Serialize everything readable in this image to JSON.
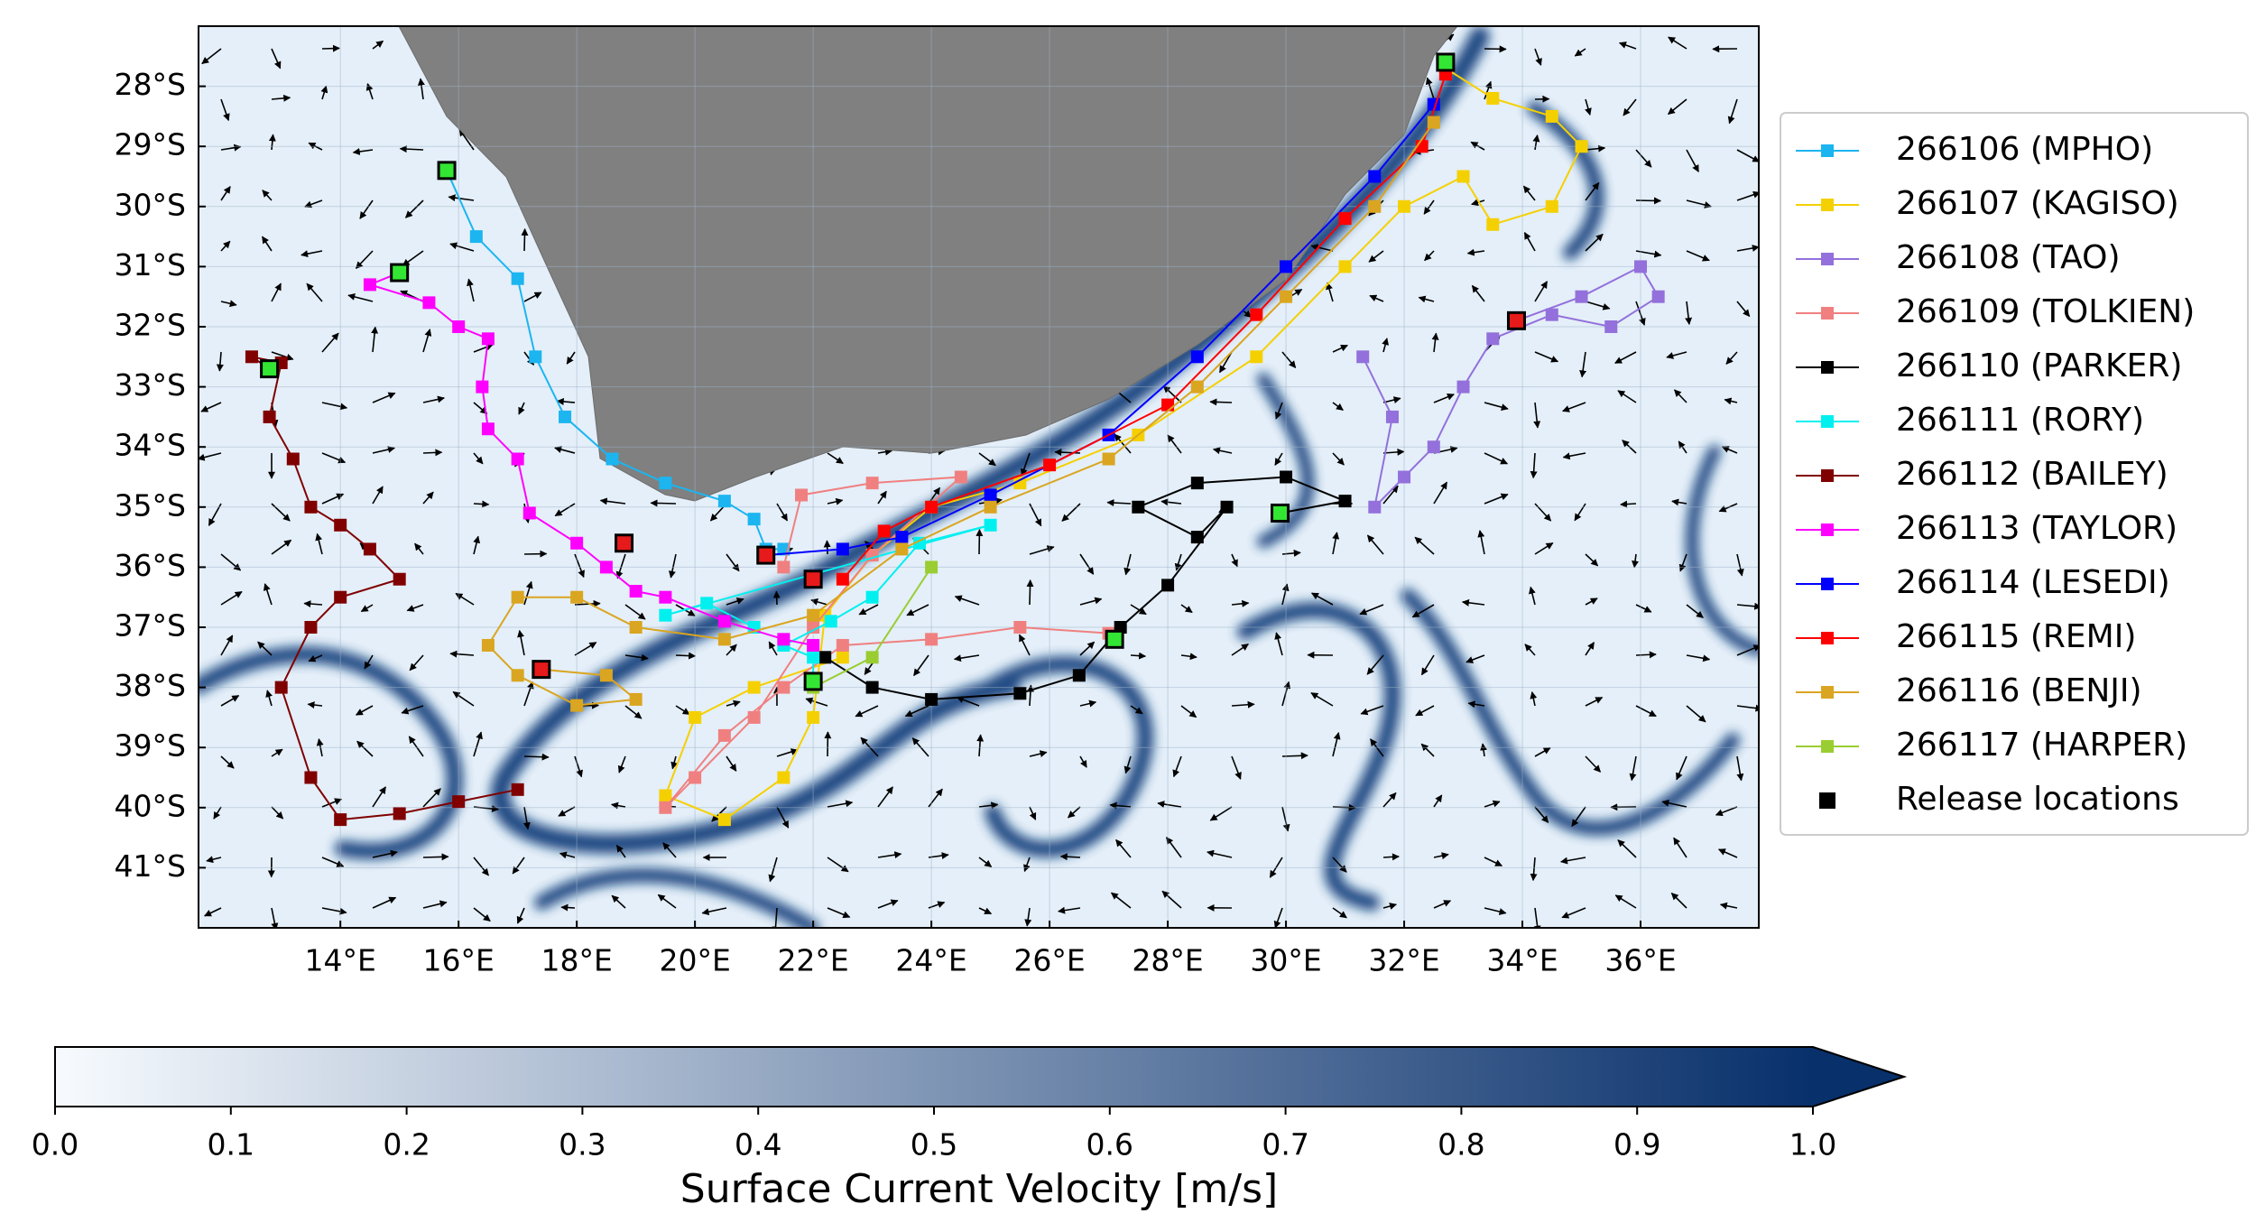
{
  "chart_data": {
    "type": "trajectory",
    "xlim": [
      11.6,
      38
    ],
    "ylim": [
      -42,
      -27
    ],
    "xticks": [
      {
        "value": 14,
        "label": "14°E"
      },
      {
        "value": 16,
        "label": "16°E"
      },
      {
        "value": 18,
        "label": "18°E"
      },
      {
        "value": 20,
        "label": "20°E"
      },
      {
        "value": 22,
        "label": "22°E"
      },
      {
        "value": 24,
        "label": "24°E"
      },
      {
        "value": 26,
        "label": "26°E"
      },
      {
        "value": 28,
        "label": "28°E"
      },
      {
        "value": 30,
        "label": "30°E"
      },
      {
        "value": 32,
        "label": "32°E"
      },
      {
        "value": 34,
        "label": "34°E"
      },
      {
        "value": 36,
        "label": "36°E"
      }
    ],
    "yticks": [
      {
        "value": -28,
        "label": "28°S"
      },
      {
        "value": -29,
        "label": "29°S"
      },
      {
        "value": -30,
        "label": "30°S"
      },
      {
        "value": -31,
        "label": "31°S"
      },
      {
        "value": -32,
        "label": "32°S"
      },
      {
        "value": -33,
        "label": "33°S"
      },
      {
        "value": -34,
        "label": "34°S"
      },
      {
        "value": -35,
        "label": "35°S"
      },
      {
        "value": -36,
        "label": "36°S"
      },
      {
        "value": -37,
        "label": "37°S"
      },
      {
        "value": -38,
        "label": "38°S"
      },
      {
        "value": -39,
        "label": "39°S"
      },
      {
        "value": -40,
        "label": "40°S"
      },
      {
        "value": -41,
        "label": "41°S"
      }
    ],
    "grid": true,
    "legend": "right",
    "series": [
      {
        "name": "266106 (MPHO)",
        "color": "#1cb5f0",
        "x": [
          15.8,
          16.3,
          17.0,
          17.3,
          17.8,
          18.6,
          19.5,
          20.5,
          21.0,
          21.2,
          21.5
        ],
        "y": [
          -29.4,
          -30.5,
          -31.2,
          -32.5,
          -33.5,
          -34.2,
          -34.6,
          -34.9,
          -35.2,
          -35.7,
          -35.7
        ]
      },
      {
        "name": "266107 (KAGISO)",
        "color": "#f5d000",
        "x": [
          32.7,
          33.5,
          34.5,
          35.0,
          34.5,
          33.5,
          33.0,
          32.0,
          31.0,
          29.5,
          27.5,
          25.5,
          24.0,
          23.0,
          22.2,
          22.0,
          21.5,
          20.5,
          19.5,
          20.0,
          21.0,
          22.5
        ],
        "y": [
          -27.7,
          -28.2,
          -28.5,
          -29.0,
          -30.0,
          -30.3,
          -29.5,
          -30.0,
          -31.0,
          -32.5,
          -33.8,
          -34.6,
          -35.0,
          -35.8,
          -36.8,
          -38.5,
          -39.5,
          -40.2,
          -39.8,
          -38.5,
          -38.0,
          -37.5
        ]
      },
      {
        "name": "266108 (TAO)",
        "color": "#9370db",
        "x": [
          33.9,
          35.0,
          36.0,
          36.3,
          35.5,
          34.5,
          33.5,
          33.0,
          32.5,
          32.0,
          31.5,
          31.8,
          31.3
        ],
        "y": [
          -31.9,
          -31.5,
          -31.0,
          -31.5,
          -32.0,
          -31.8,
          -32.2,
          -33.0,
          -34.0,
          -34.5,
          -35.0,
          -33.5,
          -32.5
        ]
      },
      {
        "name": "266109 (TOLKIEN)",
        "color": "#f08080",
        "x": [
          21.5,
          21.8,
          23.0,
          24.5,
          23.0,
          22.0,
          21.0,
          20.0,
          19.5,
          20.5,
          21.5,
          22.5,
          24.0,
          25.5,
          27.0
        ],
        "y": [
          -36.0,
          -34.8,
          -34.6,
          -34.5,
          -35.8,
          -37.0,
          -38.5,
          -39.5,
          -40.0,
          -38.8,
          -38.0,
          -37.3,
          -37.2,
          -37.0,
          -37.1
        ]
      },
      {
        "name": "266110 (PARKER)",
        "color": "#000000",
        "x": [
          29.9,
          31.0,
          30.0,
          28.5,
          27.5,
          28.5,
          29.0,
          28.0,
          27.2,
          26.5,
          25.5,
          24.0,
          23.0,
          22.2
        ],
        "y": [
          -35.1,
          -34.9,
          -34.5,
          -34.6,
          -35.0,
          -35.5,
          -35.0,
          -36.3,
          -37.0,
          -37.8,
          -38.1,
          -38.2,
          -38.0,
          -37.5
        ]
      },
      {
        "name": "266111 (RORY)",
        "color": "#00f0f0",
        "x": [
          22.0,
          22.0,
          21.5,
          22.3,
          23.0,
          23.8,
          25.0,
          19.5,
          20.2,
          21.0
        ],
        "y": [
          -37.9,
          -37.5,
          -37.3,
          -36.9,
          -36.5,
          -35.6,
          -35.3,
          -36.8,
          -36.6,
          -37.0
        ]
      },
      {
        "name": "266112 (BAILEY)",
        "color": "#800000",
        "x": [
          12.8,
          12.5,
          13.0,
          12.8,
          13.2,
          13.5,
          14.0,
          14.5,
          15.0,
          14.0,
          13.5,
          13.0,
          13.5,
          14.0,
          15.0,
          16.0,
          17.0
        ],
        "y": [
          -32.7,
          -32.5,
          -32.6,
          -33.5,
          -34.2,
          -35.0,
          -35.3,
          -35.7,
          -36.2,
          -36.5,
          -37.0,
          -38.0,
          -39.5,
          -40.2,
          -40.1,
          -39.9,
          -39.7
        ]
      },
      {
        "name": "266113 (TAYLOR)",
        "color": "#ff00ff",
        "x": [
          15.0,
          14.5,
          15.5,
          16.0,
          16.5,
          16.4,
          16.5,
          17.0,
          17.2,
          18.0,
          18.5,
          19.0,
          19.5,
          20.5,
          21.5,
          22.0
        ],
        "y": [
          -31.1,
          -31.3,
          -31.6,
          -32.0,
          -32.2,
          -33.0,
          -33.7,
          -34.2,
          -35.1,
          -35.6,
          -36.0,
          -36.4,
          -36.5,
          -36.9,
          -37.2,
          -37.3
        ]
      },
      {
        "name": "266114 (LESEDI)",
        "color": "#0000ff",
        "x": [
          21.2,
          22.5,
          23.5,
          25.0,
          27.0,
          28.5,
          30.0,
          31.5,
          32.5
        ],
        "y": [
          -35.8,
          -35.7,
          -35.5,
          -34.8,
          -33.8,
          -32.5,
          -31.0,
          -29.5,
          -28.3
        ]
      },
      {
        "name": "266115 (REMI)",
        "color": "#ff0000",
        "x": [
          22.5,
          23.2,
          24.0,
          26.0,
          28.0,
          29.5,
          31.0,
          32.3,
          32.7
        ],
        "y": [
          -36.2,
          -35.4,
          -35.0,
          -34.3,
          -33.3,
          -31.8,
          -30.2,
          -29.0,
          -27.8
        ]
      },
      {
        "name": "266116 (BENJI)",
        "color": "#daa520",
        "x": [
          17.4,
          18.5,
          19.0,
          18.0,
          17.0,
          16.5,
          17.0,
          18.0,
          19.0,
          20.5,
          22.0,
          23.5,
          25.0,
          27.0,
          28.5,
          30.0,
          31.5,
          32.5
        ],
        "y": [
          -37.7,
          -37.8,
          -38.2,
          -38.3,
          -37.8,
          -37.3,
          -36.5,
          -36.5,
          -37.0,
          -37.2,
          -36.8,
          -35.7,
          -35.0,
          -34.2,
          -33.0,
          -31.5,
          -30.0,
          -28.6
        ]
      },
      {
        "name": "266117 (HARPER)",
        "color": "#9acd32",
        "x": [
          22.0,
          23.0,
          24.0
        ],
        "y": [
          -38.0,
          -37.5,
          -36.0
        ]
      }
    ],
    "release": {
      "name": "Release locations",
      "color": "#000000",
      "x": [
        15.8,
        15.0,
        12.8,
        32.7,
        29.9,
        27.1,
        22.0,
        33.9,
        18.8,
        21.2,
        17.4,
        22.0
      ],
      "y": [
        -29.4,
        -31.1,
        -32.7,
        -27.6,
        -35.1,
        -37.2,
        -37.9,
        -31.9,
        -35.6,
        -35.8,
        -37.7,
        -36.2
      ],
      "fills": [
        "#33e633",
        "#33e633",
        "#33e633",
        "#33e633",
        "#33e633",
        "#33e633",
        "#33e633",
        "#e61a1a",
        "#e61a1a",
        "#e61a1a",
        "#e61a1a",
        "#e61a1a"
      ]
    },
    "colorbar": {
      "label": "Surface Current Velocity [m/s]",
      "lim": [
        0,
        1
      ],
      "colors": [
        "#f7fbff",
        "#08306b"
      ],
      "ticks": [
        {
          "value": 0,
          "label": "0.0"
        },
        0.1,
        0.2,
        0.3,
        0.4,
        0.5,
        0.6,
        0.7,
        0.8,
        0.9,
        {
          "value": 1,
          "label": "1.0"
        }
      ]
    }
  }
}
